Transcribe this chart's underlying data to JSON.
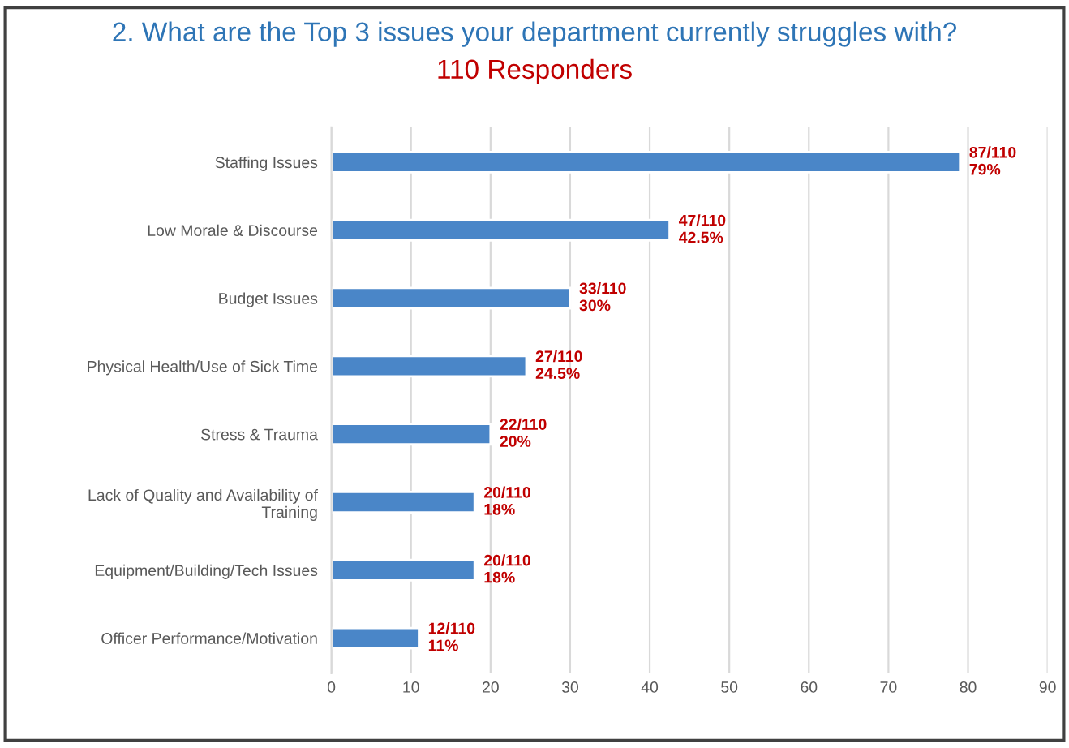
{
  "chart_data": {
    "type": "bar",
    "orientation": "horizontal",
    "title": "2. What are the Top 3 issues your department currently struggles with?",
    "subtitle": "110 Responders",
    "categories": [
      "Staffing Issues",
      "Low Morale & Discourse",
      "Budget Issues",
      "Physical Health/Use of Sick Time",
      "Stress & Trauma",
      "Lack of Quality and Availability of\nTraining",
      "Equipment/Building/Tech Issues",
      "Officer Performance/Motivation"
    ],
    "values": [
      79,
      42.5,
      30,
      24.5,
      20,
      18,
      18,
      11
    ],
    "value_labels": [
      "87/110\n79%",
      "47/110\n42.5%",
      "33/110\n30%",
      "27/110\n24.5%",
      "22/110\n20%",
      "20/110\n18%",
      "20/110\n18%",
      "12/110\n11%"
    ],
    "color": "#4a86c8",
    "xlim": [
      0,
      90
    ],
    "xticks": [
      0,
      10,
      20,
      30,
      40,
      50,
      60,
      70,
      80,
      90
    ],
    "grid": "x",
    "legend": false
  }
}
